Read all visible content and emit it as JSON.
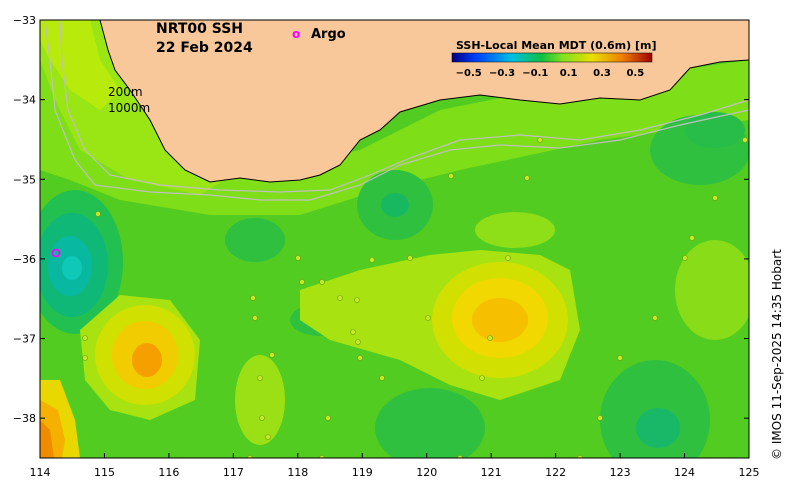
{
  "map": {
    "product": "NRT00 SSH",
    "date": "22 Feb 2024",
    "isobaths": [
      "200m",
      "1000m"
    ],
    "legend_title": "SSH-Local Mean MDT (0.6m) [m]",
    "colorbar_ticks": [
      "−0.5",
      "−0.3",
      "−0.1",
      "0.1",
      "0.3",
      "0.5"
    ],
    "argo_marker": "o",
    "argo_label": "Argo",
    "credit": "© IMOS 11-Sep-2025 14:35 Hobart",
    "lon_ticks": [
      "114",
      "115",
      "116",
      "117",
      "118",
      "119",
      "120",
      "121",
      "122",
      "123",
      "124",
      "125"
    ],
    "lat_ticks": [
      "−33",
      "−34",
      "−35",
      "−36",
      "−37",
      "−38"
    ],
    "extent": {
      "lon": [
        114,
        125
      ],
      "lat": [
        -38.5,
        -33
      ]
    },
    "colors": {
      "land": "#f8c89a",
      "strong_low": "#00b8a0",
      "low": "#1ec23a",
      "near_zero": "#7bdc18",
      "high": "#e8e000",
      "strong_high": "#f5a000",
      "argo": "#ff00ff",
      "isobath": "#b8b8b8"
    }
  }
}
